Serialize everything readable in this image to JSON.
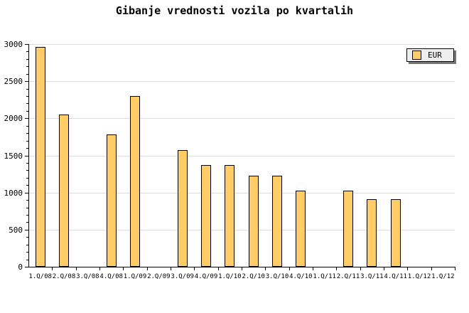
{
  "colors": {
    "background": "#FFFFFF",
    "bar_fill": "#FFCC66",
    "bar_border": "#000000",
    "grid_line": "#DDDDDD",
    "axis": "#000000",
    "text": "#000000",
    "legend_bg": "#EEEEEE",
    "legend_border": "#000000",
    "legend_shadow": "#777777"
  },
  "chart_data": {
    "type": "bar",
    "title": "Gibanje vrednosti vozila po kvartalih",
    "xlabel": "",
    "ylabel": "",
    "categories": [
      "1.Q/08",
      "2.Q/08",
      "3.Q/08",
      "4.Q/08",
      "1.Q/09",
      "2.Q/09",
      "3.Q/09",
      "4.Q/09",
      "1.Q/10",
      "2.Q/10",
      "3.Q/10",
      "4.Q/10",
      "1.Q/11",
      "2.Q/11",
      "3.Q/11",
      "4.Q/11",
      "1.Q/12",
      "1.Q/12"
    ],
    "series": [
      {
        "name": "EUR",
        "values": [
          2960,
          2050,
          null,
          1780,
          2300,
          null,
          1570,
          1370,
          1370,
          1230,
          1230,
          1030,
          null,
          1030,
          910,
          910,
          null,
          null
        ]
      }
    ],
    "ylim": [
      0,
      3000
    ],
    "y_ticks": [
      0,
      500,
      1000,
      1500,
      2000,
      2500,
      3000
    ],
    "y_minor_step": 100,
    "grid": true,
    "legend_position": "top-right"
  }
}
